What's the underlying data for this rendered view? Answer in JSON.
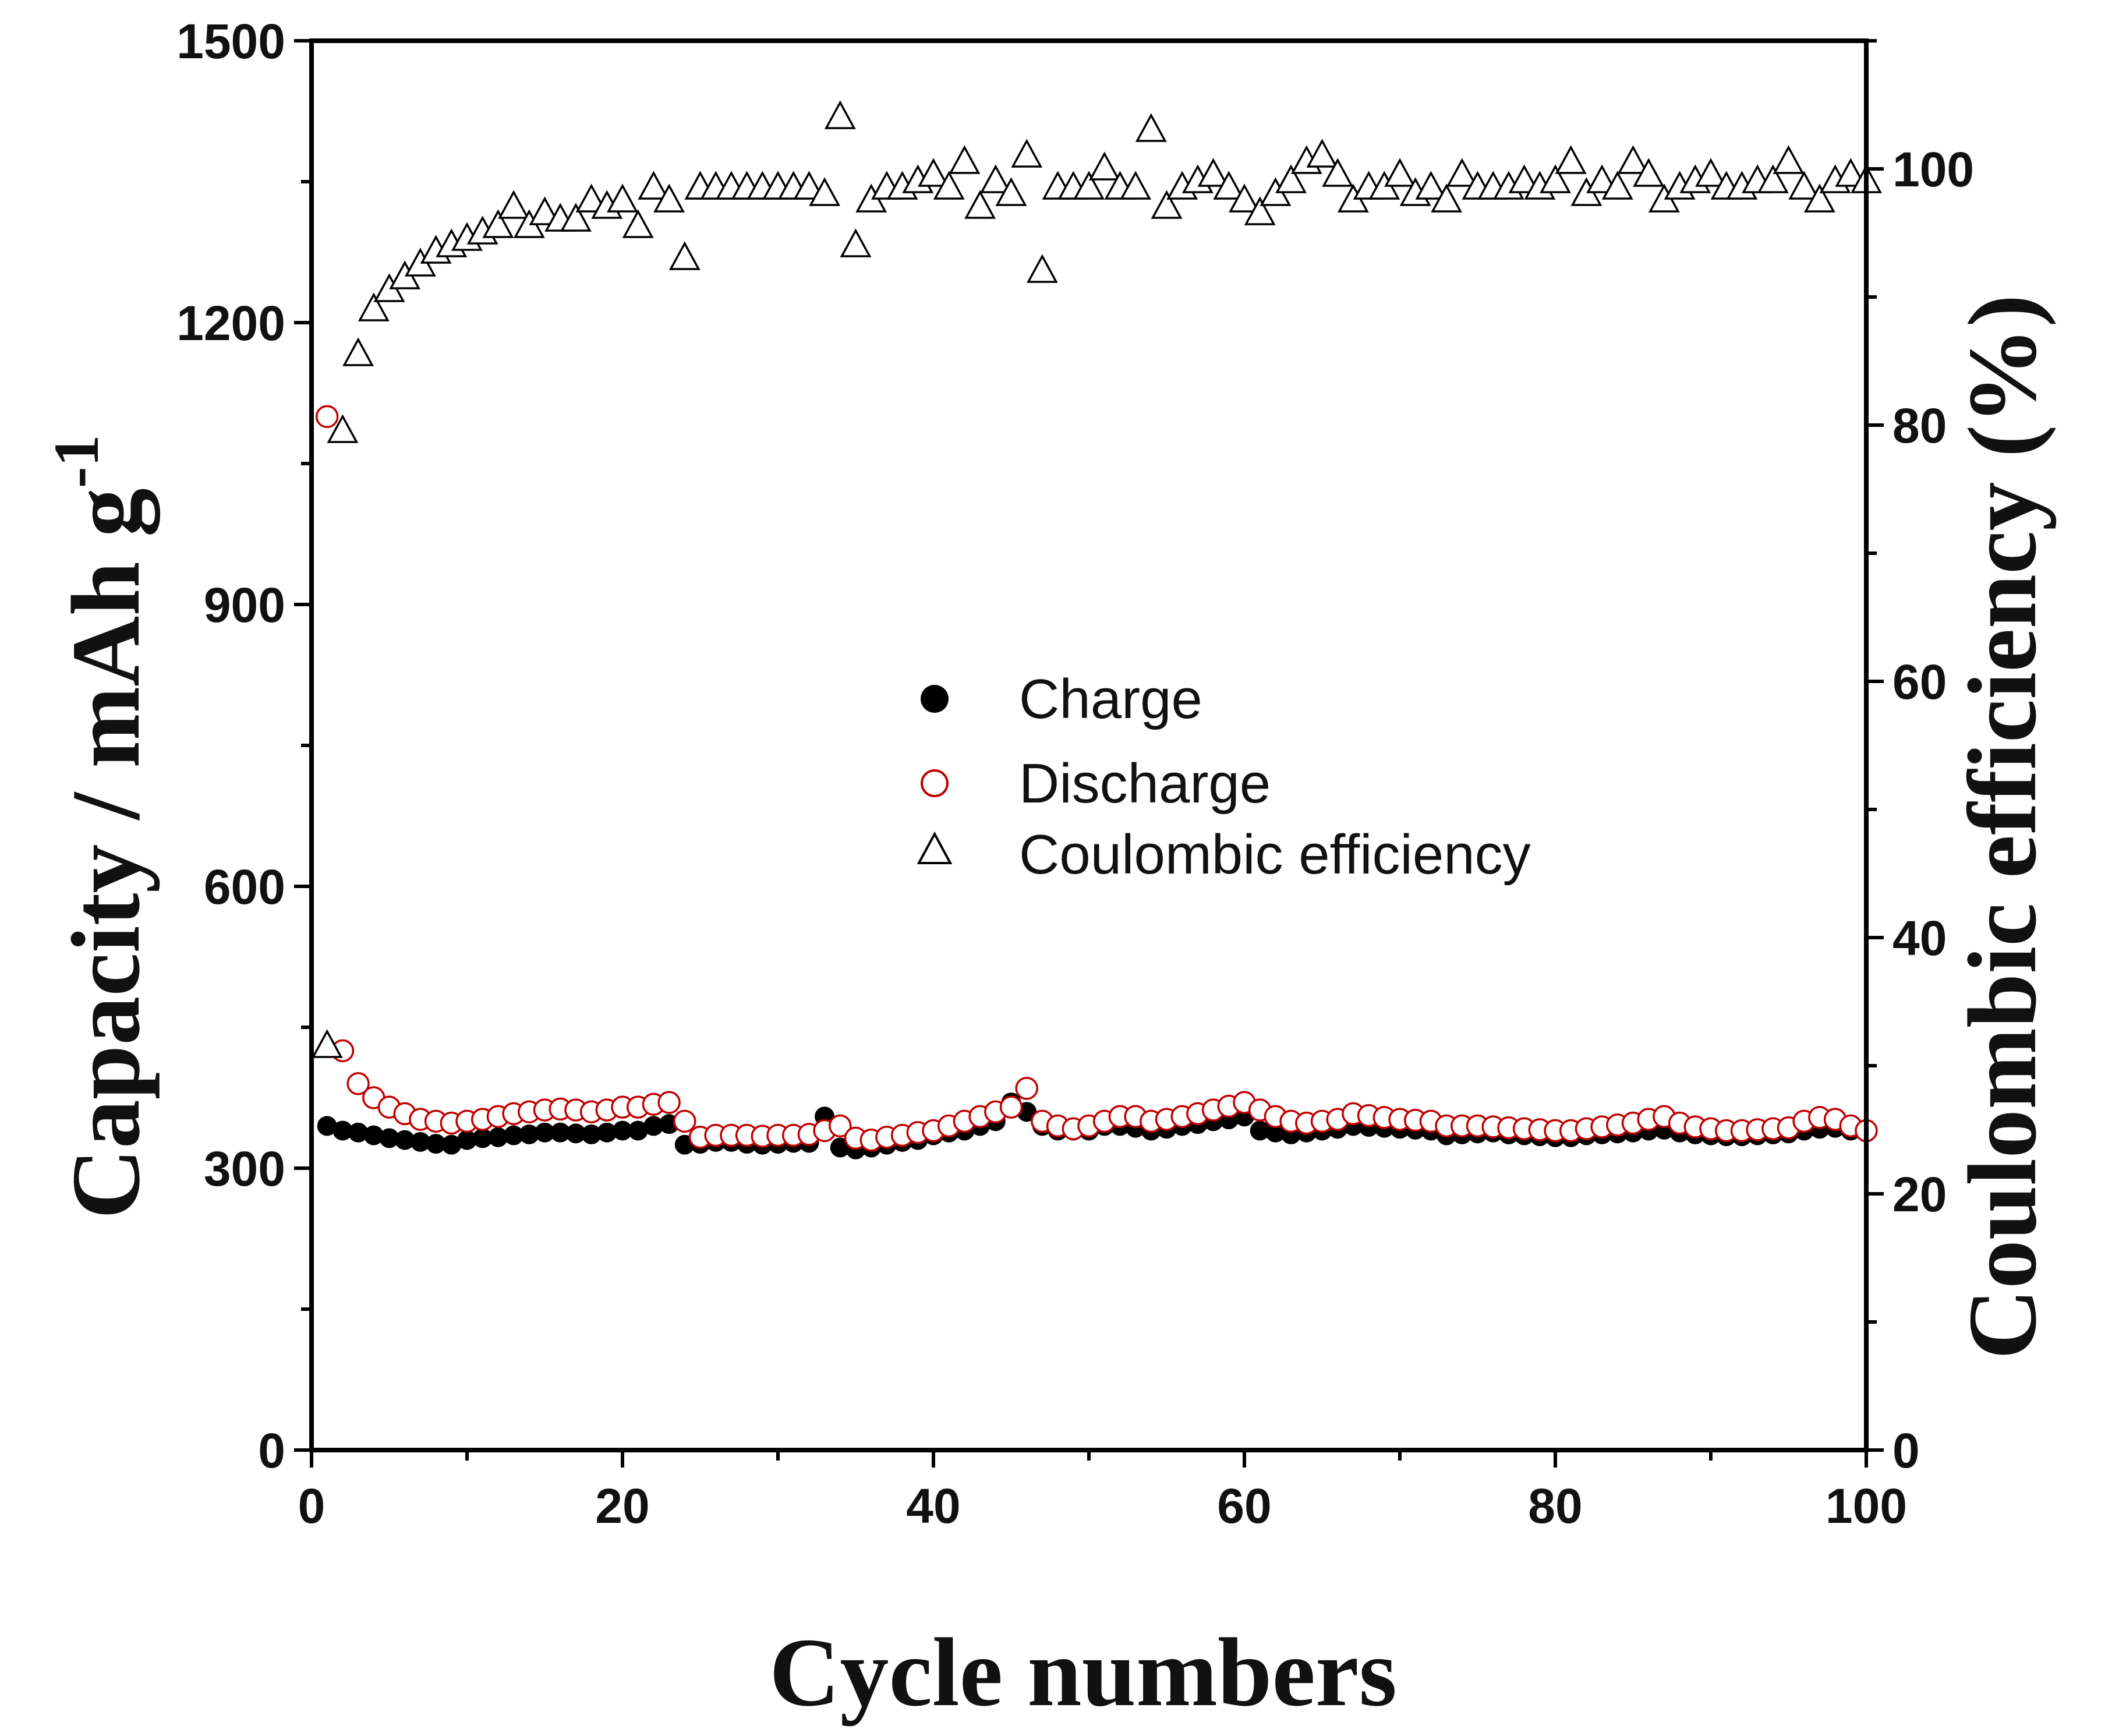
{
  "chart_data": {
    "type": "scatter",
    "xlabel": "Cycle numbers",
    "ylabel_left": "Capacity / mAh g",
    "ylabel_left_superscript": "-1",
    "ylabel_right": "Coulombic efficiency (%)",
    "xlim": [
      0,
      100
    ],
    "ylim_left": [
      0,
      1500
    ],
    "ylim_right": [
      0,
      110
    ],
    "x_ticks": [
      "0",
      "20",
      "40",
      "60",
      "80",
      "100"
    ],
    "y_left_ticks": [
      "0",
      "300",
      "600",
      "900",
      "1200",
      "1500"
    ],
    "y_right_ticks": [
      "0",
      "20",
      "40",
      "60",
      "80",
      "100"
    ],
    "legend_position": "center",
    "series": [
      {
        "name": "Charge",
        "axis": "left",
        "marker": "filled-circle",
        "color": "#000000",
        "values": [
          345,
          340,
          338,
          335,
          332,
          330,
          328,
          326,
          325,
          330,
          332,
          333,
          335,
          336,
          338,
          338,
          337,
          336,
          338,
          340,
          340,
          345,
          347,
          325,
          326,
          328,
          328,
          326,
          325,
          326,
          327,
          327,
          355,
          322,
          320,
          322,
          325,
          328,
          330,
          335,
          338,
          340,
          345,
          350,
          370,
          360,
          345,
          340,
          340,
          340,
          345,
          345,
          343,
          340,
          342,
          345,
          347,
          350,
          352,
          355,
          340,
          338,
          336,
          338,
          340,
          342,
          345,
          344,
          343,
          342,
          341,
          340,
          335,
          336,
          337,
          338,
          336,
          335,
          334,
          333,
          333,
          335,
          336,
          337,
          338,
          340,
          341,
          338,
          336,
          335,
          334,
          334,
          335,
          336,
          337,
          340,
          342,
          343,
          340,
          338
        ]
      },
      {
        "name": "Discharge",
        "axis": "left",
        "marker": "open-circle",
        "color": "#c00000",
        "values": [
          1100,
          425,
          390,
          375,
          365,
          358,
          352,
          350,
          348,
          350,
          352,
          355,
          358,
          360,
          362,
          363,
          362,
          360,
          362,
          365,
          365,
          368,
          370,
          350,
          333,
          335,
          335,
          335,
          334,
          335,
          335,
          336,
          340,
          345,
          332,
          330,
          333,
          335,
          338,
          340,
          345,
          350,
          355,
          360,
          365,
          385,
          350,
          345,
          342,
          345,
          350,
          355,
          355,
          350,
          352,
          355,
          358,
          362,
          366,
          370,
          362,
          355,
          350,
          348,
          350,
          352,
          358,
          356,
          354,
          352,
          351,
          350,
          345,
          345,
          345,
          344,
          343,
          342,
          341,
          340,
          340,
          342,
          344,
          346,
          348,
          352,
          355,
          348,
          344,
          342,
          340,
          340,
          341,
          342,
          343,
          350,
          354,
          352,
          345,
          340
        ]
      },
      {
        "name": "Coulombic efficiency",
        "axis": "right",
        "marker": "open-triangle",
        "color": "#000000",
        "values": [
          31.5,
          79.5,
          85.5,
          89.0,
          90.5,
          91.5,
          92.5,
          93.5,
          94.0,
          94.5,
          95.0,
          95.5,
          97.0,
          95.5,
          96.5,
          96.0,
          96.0,
          97.5,
          97.0,
          97.5,
          95.5,
          98.5,
          97.5,
          93.0,
          98.5,
          98.5,
          98.5,
          98.5,
          98.5,
          98.5,
          98.5,
          98.5,
          98.0,
          104.0,
          94.0,
          97.5,
          98.5,
          98.5,
          99.0,
          99.5,
          98.5,
          100.5,
          97.0,
          99.0,
          98.0,
          101.0,
          92.0,
          98.5,
          98.5,
          98.5,
          100.0,
          98.5,
          98.5,
          103.0,
          97.0,
          98.5,
          99.0,
          99.5,
          98.5,
          97.5,
          96.5,
          98.0,
          99.0,
          100.5,
          101.0,
          99.5,
          97.5,
          98.5,
          98.5,
          99.5,
          98.0,
          98.5,
          97.5,
          99.5,
          98.5,
          98.5,
          98.5,
          99.0,
          98.5,
          99.0,
          100.5,
          98.0,
          99.0,
          98.5,
          100.5,
          99.5,
          97.5,
          98.5,
          99.0,
          99.5,
          98.5,
          98.5,
          99.0,
          99.0,
          100.5,
          98.5,
          97.5,
          99.0,
          99.5,
          99.0
        ]
      }
    ]
  }
}
